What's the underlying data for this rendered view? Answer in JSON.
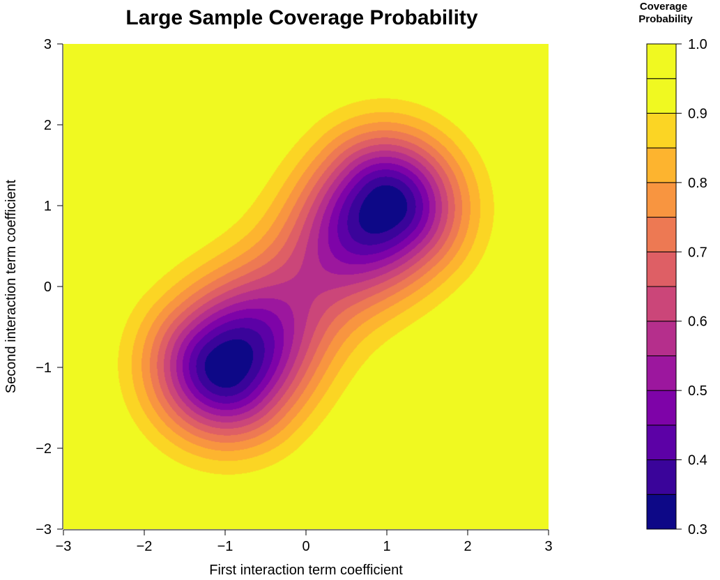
{
  "chart_data": {
    "type": "heatmap",
    "subtype": "filled-contour",
    "title": "Large Sample Coverage Probability",
    "xlabel": "First interaction term coefficient",
    "ylabel": "Second interaction term coefficient",
    "xlim": [
      -3,
      3
    ],
    "ylim": [
      -3,
      3
    ],
    "x_ticks": [
      -3,
      -2,
      -1,
      0,
      1,
      2,
      3
    ],
    "x_tick_labels": [
      "−3",
      "−2",
      "−1",
      "0",
      "1",
      "2",
      "3"
    ],
    "y_ticks": [
      -3,
      -2,
      -1,
      0,
      1,
      2,
      3
    ],
    "y_tick_labels": [
      "−3",
      "−2",
      "−1",
      "0",
      "1",
      "2",
      "3"
    ],
    "minima": [
      {
        "x": -1,
        "y": -1,
        "value": 0.3
      },
      {
        "x": 1,
        "y": 1,
        "value": 0.3
      }
    ],
    "corner_maxima": [
      {
        "x": -3,
        "y": 3,
        "value": 1.0
      },
      {
        "x": 3,
        "y": -3,
        "value": 1.0
      }
    ],
    "grid": false,
    "colorbar": {
      "title_line1": "Coverage",
      "title_line2": "Probability",
      "placement": "right",
      "range": [
        0.3,
        1.0
      ],
      "levels": [
        0.3,
        0.35,
        0.4,
        0.45,
        0.5,
        0.55,
        0.6,
        0.65,
        0.7,
        0.75,
        0.8,
        0.85,
        0.9,
        0.95,
        1.0
      ],
      "tick_values": [
        0.3,
        0.4,
        0.5,
        0.6,
        0.7,
        0.8,
        0.9,
        1.0
      ],
      "tick_labels": [
        "0.3",
        "0.4",
        "0.5",
        "0.6",
        "0.7",
        "0.8",
        "0.9",
        "1.0"
      ],
      "colors": [
        "#0d0887",
        "#3a049a",
        "#5c01a6",
        "#7e03a8",
        "#9c179e",
        "#b52f8c",
        "#cb4679",
        "#de5f65",
        "#ed7953",
        "#f89540",
        "#fdb42f",
        "#fbd524",
        "#f0f921",
        "#f0f921"
      ]
    }
  }
}
